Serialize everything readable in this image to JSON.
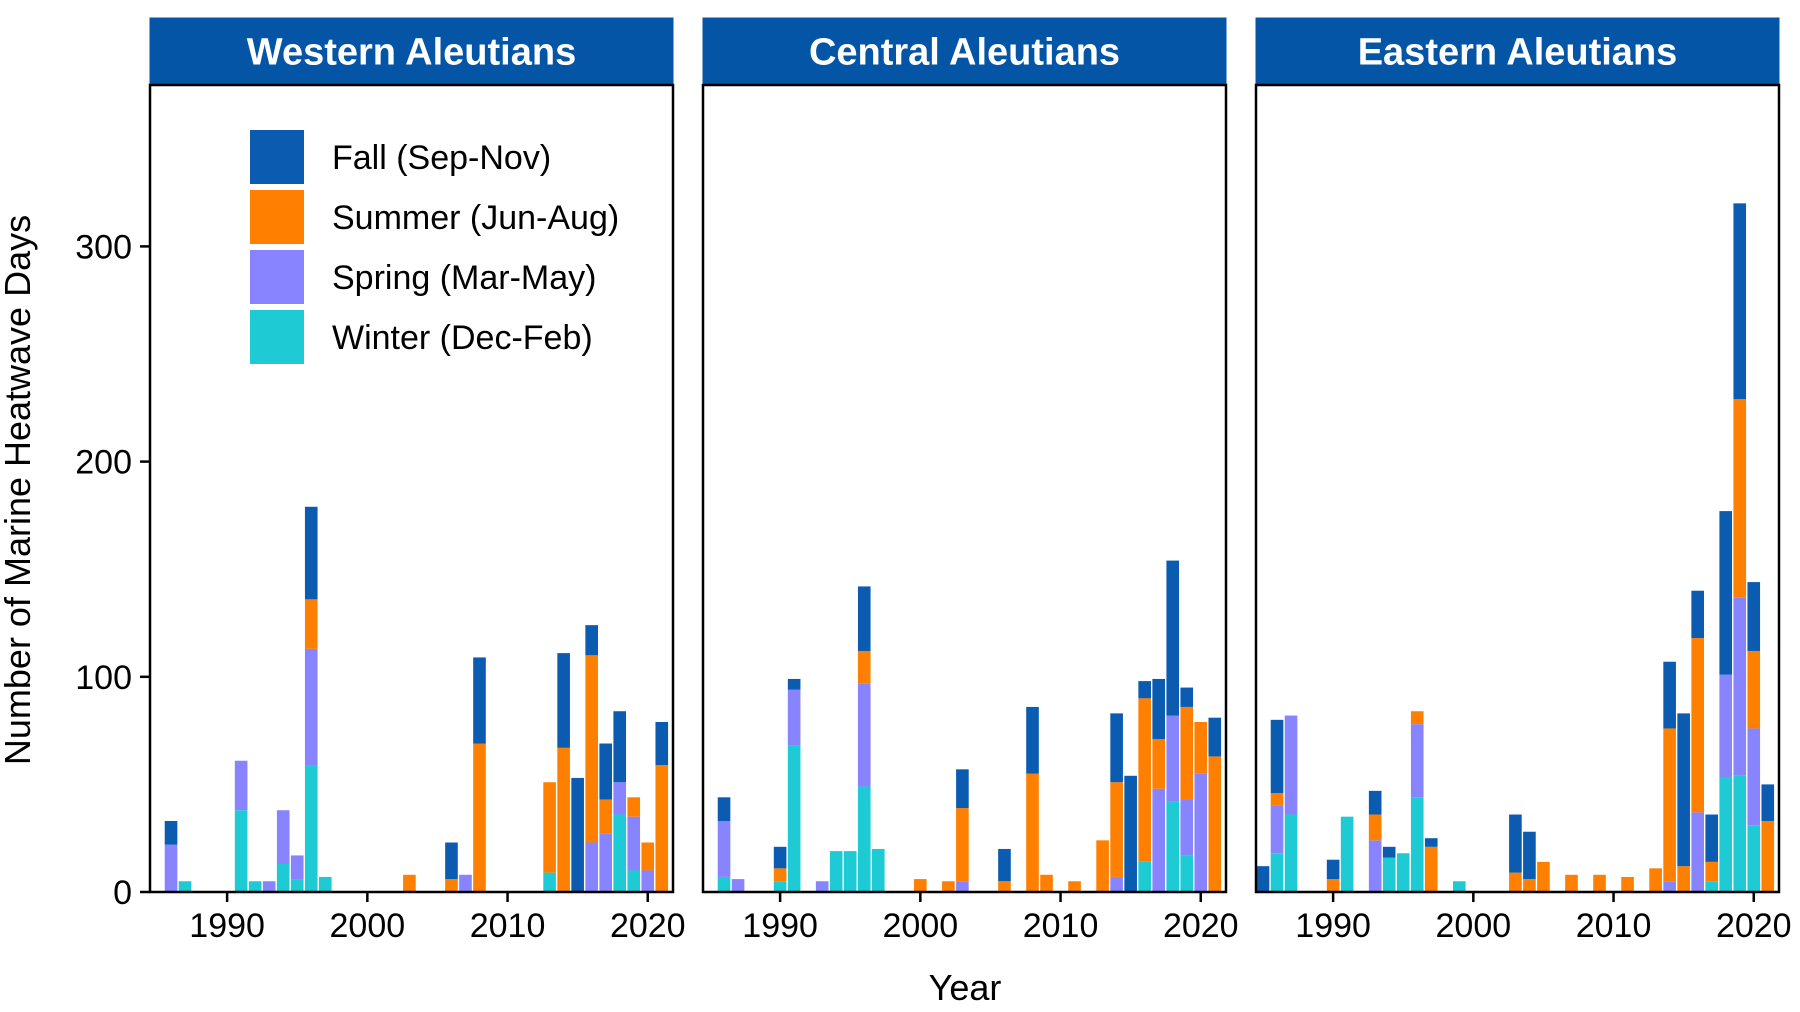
{
  "chart_data": {
    "type": "bar",
    "stacked": true,
    "xlabel": "Year",
    "ylabel": "Number of Marine Heatwave Days",
    "ylim": [
      0,
      375
    ],
    "yticks": [
      0,
      100,
      200,
      300
    ],
    "xlim": [
      1984.5,
      2021.8
    ],
    "xticks": [
      1990,
      2000,
      2010,
      2020
    ],
    "grid": false,
    "legend": {
      "placement": "top-left of first panel",
      "entries": [
        {
          "key": "fall",
          "label": "Fall (Sep-Nov)",
          "color": "#0B5BB0"
        },
        {
          "key": "summer",
          "label": "Summer (Jun-Aug)",
          "color": "#FF8000"
        },
        {
          "key": "spring",
          "label": "Spring (Mar-May)",
          "color": "#8884FF"
        },
        {
          "key": "winter",
          "label": "Winter (Dec-Feb)",
          "color": "#1ECBD4"
        }
      ]
    },
    "stack_order": [
      "winter",
      "spring",
      "summer",
      "fall"
    ],
    "strip_color": "#0555A6",
    "panels": [
      {
        "title": "Western Aleutians",
        "bars": [
          {
            "year": 1986,
            "winter": 0,
            "spring": 22,
            "summer": 0,
            "fall": 11
          },
          {
            "year": 1987,
            "winter": 5,
            "spring": 0,
            "summer": 0,
            "fall": 0
          },
          {
            "year": 1991,
            "winter": 38,
            "spring": 23,
            "summer": 0,
            "fall": 0
          },
          {
            "year": 1992,
            "winter": 5,
            "spring": 0,
            "summer": 0,
            "fall": 0
          },
          {
            "year": 1993,
            "winter": 0,
            "spring": 5,
            "summer": 0,
            "fall": 0
          },
          {
            "year": 1994,
            "winter": 13,
            "spring": 25,
            "summer": 0,
            "fall": 0
          },
          {
            "year": 1995,
            "winter": 6,
            "spring": 11,
            "summer": 0,
            "fall": 0
          },
          {
            "year": 1996,
            "winter": 59,
            "spring": 54,
            "summer": 23,
            "fall": 43
          },
          {
            "year": 1997,
            "winter": 7,
            "spring": 0,
            "summer": 0,
            "fall": 0
          },
          {
            "year": 2003,
            "winter": 0,
            "spring": 0,
            "summer": 8,
            "fall": 0
          },
          {
            "year": 2006,
            "winter": 0,
            "spring": 0,
            "summer": 6,
            "fall": 17
          },
          {
            "year": 2007,
            "winter": 0,
            "spring": 8,
            "summer": 0,
            "fall": 0
          },
          {
            "year": 2008,
            "winter": 0,
            "spring": 0,
            "summer": 69,
            "fall": 40
          },
          {
            "year": 2013,
            "winter": 9,
            "spring": 0,
            "summer": 42,
            "fall": 0
          },
          {
            "year": 2014,
            "winter": 0,
            "spring": 0,
            "summer": 67,
            "fall": 44
          },
          {
            "year": 2015,
            "winter": 0,
            "spring": 0,
            "summer": 0,
            "fall": 53
          },
          {
            "year": 2016,
            "winter": 0,
            "spring": 23,
            "summer": 87,
            "fall": 14
          },
          {
            "year": 2017,
            "winter": 0,
            "spring": 27,
            "summer": 16,
            "fall": 26
          },
          {
            "year": 2018,
            "winter": 36,
            "spring": 15,
            "summer": 0,
            "fall": 33
          },
          {
            "year": 2019,
            "winter": 10,
            "spring": 25,
            "summer": 9,
            "fall": 0
          },
          {
            "year": 2020,
            "winter": 0,
            "spring": 10,
            "summer": 13,
            "fall": 0
          },
          {
            "year": 2021,
            "winter": 0,
            "spring": 0,
            "summer": 59,
            "fall": 20
          }
        ]
      },
      {
        "title": "Central Aleutians",
        "bars": [
          {
            "year": 1986,
            "winter": 7,
            "spring": 26,
            "summer": 0,
            "fall": 11
          },
          {
            "year": 1987,
            "winter": 0,
            "spring": 6,
            "summer": 0,
            "fall": 0
          },
          {
            "year": 1990,
            "winter": 5,
            "spring": 0,
            "summer": 6,
            "fall": 10
          },
          {
            "year": 1991,
            "winter": 68,
            "spring": 26,
            "summer": 0,
            "fall": 5
          },
          {
            "year": 1993,
            "winter": 0,
            "spring": 5,
            "summer": 0,
            "fall": 0
          },
          {
            "year": 1994,
            "winter": 19,
            "spring": 0,
            "summer": 0,
            "fall": 0
          },
          {
            "year": 1995,
            "winter": 19,
            "spring": 0,
            "summer": 0,
            "fall": 0
          },
          {
            "year": 1996,
            "winter": 49,
            "spring": 48,
            "summer": 15,
            "fall": 30
          },
          {
            "year": 1997,
            "winter": 20,
            "spring": 0,
            "summer": 0,
            "fall": 0
          },
          {
            "year": 2000,
            "winter": 0,
            "spring": 0,
            "summer": 6,
            "fall": 0
          },
          {
            "year": 2002,
            "winter": 0,
            "spring": 0,
            "summer": 5,
            "fall": 0
          },
          {
            "year": 2003,
            "winter": 0,
            "spring": 5,
            "summer": 34,
            "fall": 18
          },
          {
            "year": 2006,
            "winter": 0,
            "spring": 0,
            "summer": 5,
            "fall": 15
          },
          {
            "year": 2008,
            "winter": 0,
            "spring": 0,
            "summer": 55,
            "fall": 31
          },
          {
            "year": 2009,
            "winter": 0,
            "spring": 0,
            "summer": 8,
            "fall": 0
          },
          {
            "year": 2011,
            "winter": 0,
            "spring": 0,
            "summer": 5,
            "fall": 0
          },
          {
            "year": 2013,
            "winter": 0,
            "spring": 0,
            "summer": 24,
            "fall": 0
          },
          {
            "year": 2014,
            "winter": 0,
            "spring": 7,
            "summer": 44,
            "fall": 32
          },
          {
            "year": 2015,
            "winter": 0,
            "spring": 0,
            "summer": 0,
            "fall": 54
          },
          {
            "year": 2016,
            "winter": 14,
            "spring": 0,
            "summer": 76,
            "fall": 8
          },
          {
            "year": 2017,
            "winter": 0,
            "spring": 48,
            "summer": 23,
            "fall": 28
          },
          {
            "year": 2018,
            "winter": 42,
            "spring": 40,
            "summer": 0,
            "fall": 72
          },
          {
            "year": 2019,
            "winter": 17,
            "spring": 26,
            "summer": 43,
            "fall": 9
          },
          {
            "year": 2020,
            "winter": 0,
            "spring": 55,
            "summer": 24,
            "fall": 0
          },
          {
            "year": 2021,
            "winter": 0,
            "spring": 0,
            "summer": 63,
            "fall": 18
          }
        ]
      },
      {
        "title": "Eastern Aleutians",
        "bars": [
          {
            "year": 1985,
            "winter": 0,
            "spring": 0,
            "summer": 0,
            "fall": 12
          },
          {
            "year": 1986,
            "winter": 18,
            "spring": 22,
            "summer": 6,
            "fall": 34
          },
          {
            "year": 1987,
            "winter": 36,
            "spring": 46,
            "summer": 0,
            "fall": 0
          },
          {
            "year": 1990,
            "winter": 0,
            "spring": 0,
            "summer": 6,
            "fall": 9
          },
          {
            "year": 1991,
            "winter": 35,
            "spring": 0,
            "summer": 0,
            "fall": 0
          },
          {
            "year": 1993,
            "winter": 0,
            "spring": 24,
            "summer": 12,
            "fall": 11
          },
          {
            "year": 1994,
            "winter": 16,
            "spring": 0,
            "summer": 0,
            "fall": 5
          },
          {
            "year": 1995,
            "winter": 18,
            "spring": 0,
            "summer": 0,
            "fall": 0
          },
          {
            "year": 1996,
            "winter": 44,
            "spring": 34,
            "summer": 6,
            "fall": 0
          },
          {
            "year": 1997,
            "winter": 0,
            "spring": 0,
            "summer": 21,
            "fall": 4
          },
          {
            "year": 1999,
            "winter": 5,
            "spring": 0,
            "summer": 0,
            "fall": 0
          },
          {
            "year": 2003,
            "winter": 0,
            "spring": 0,
            "summer": 9,
            "fall": 27
          },
          {
            "year": 2004,
            "winter": 0,
            "spring": 0,
            "summer": 6,
            "fall": 22
          },
          {
            "year": 2005,
            "winter": 0,
            "spring": 0,
            "summer": 14,
            "fall": 0
          },
          {
            "year": 2007,
            "winter": 0,
            "spring": 0,
            "summer": 8,
            "fall": 0
          },
          {
            "year": 2009,
            "winter": 0,
            "spring": 0,
            "summer": 8,
            "fall": 0
          },
          {
            "year": 2011,
            "winter": 0,
            "spring": 0,
            "summer": 7,
            "fall": 0
          },
          {
            "year": 2013,
            "winter": 0,
            "spring": 0,
            "summer": 11,
            "fall": 0
          },
          {
            "year": 2014,
            "winter": 0,
            "spring": 5,
            "summer": 71,
            "fall": 31
          },
          {
            "year": 2015,
            "winter": 0,
            "spring": 0,
            "summer": 12,
            "fall": 71
          },
          {
            "year": 2016,
            "winter": 0,
            "spring": 37,
            "summer": 81,
            "fall": 22
          },
          {
            "year": 2017,
            "winter": 5,
            "spring": 0,
            "summer": 9,
            "fall": 22
          },
          {
            "year": 2018,
            "winter": 53,
            "spring": 48,
            "summer": 0,
            "fall": 76
          },
          {
            "year": 2019,
            "winter": 54,
            "spring": 83,
            "summer": 92,
            "fall": 91
          },
          {
            "year": 2020,
            "winter": 31,
            "spring": 45,
            "summer": 36,
            "fall": 32
          },
          {
            "year": 2021,
            "winter": 0,
            "spring": 0,
            "summer": 33,
            "fall": 17
          }
        ]
      }
    ]
  }
}
